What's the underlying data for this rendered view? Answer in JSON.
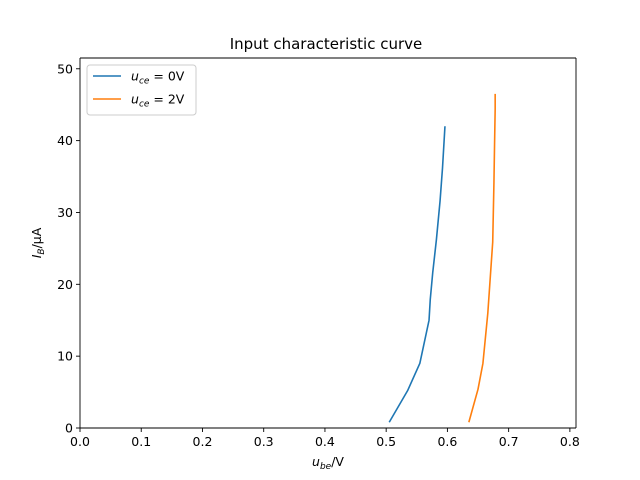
{
  "chart_data": {
    "type": "line",
    "title": "Input characteristic curve",
    "xlabel": {
      "main": "u",
      "sub": "be",
      "rest": "/V"
    },
    "ylabel": {
      "main": "I",
      "sub": "B",
      "rest": "/μA"
    },
    "xlim": [
      0.0,
      0.81
    ],
    "ylim": [
      0,
      51.5
    ],
    "x_ticks": [
      0.0,
      0.1,
      0.2,
      0.3,
      0.4,
      0.5,
      0.6,
      0.7,
      0.8
    ],
    "x_tick_labels": [
      "0.0",
      "0.1",
      "0.2",
      "0.3",
      "0.4",
      "0.5",
      "0.6",
      "0.7",
      "0.8"
    ],
    "y_ticks": [
      0,
      10,
      20,
      30,
      40,
      50
    ],
    "y_tick_labels": [
      "0",
      "10",
      "20",
      "30",
      "40",
      "50"
    ],
    "grid": false,
    "legend_position": "top-left",
    "series": [
      {
        "name": "u_ce = 0V",
        "legend": {
          "main": "u",
          "sub": "ce",
          "rest": " = 0V"
        },
        "color": "#1f77b4",
        "x": [
          0.505,
          0.535,
          0.555,
          0.57,
          0.572,
          0.576,
          0.582,
          0.588,
          0.592,
          0.596
        ],
        "y": [
          0.8,
          5.2,
          9.0,
          15.0,
          17.9,
          21.6,
          26.2,
          31.6,
          36.2,
          42.0
        ]
      },
      {
        "name": "u_ce = 2V",
        "legend": {
          "main": "u",
          "sub": "ce",
          "rest": " = 2V"
        },
        "color": "#ff7f0e",
        "x": [
          0.635,
          0.65,
          0.658,
          0.666,
          0.674,
          0.676,
          0.677,
          0.678,
          0.678
        ],
        "y": [
          0.8,
          5.4,
          9.0,
          16.0,
          25.9,
          34.2,
          39.5,
          44.4,
          46.5
        ]
      }
    ]
  }
}
